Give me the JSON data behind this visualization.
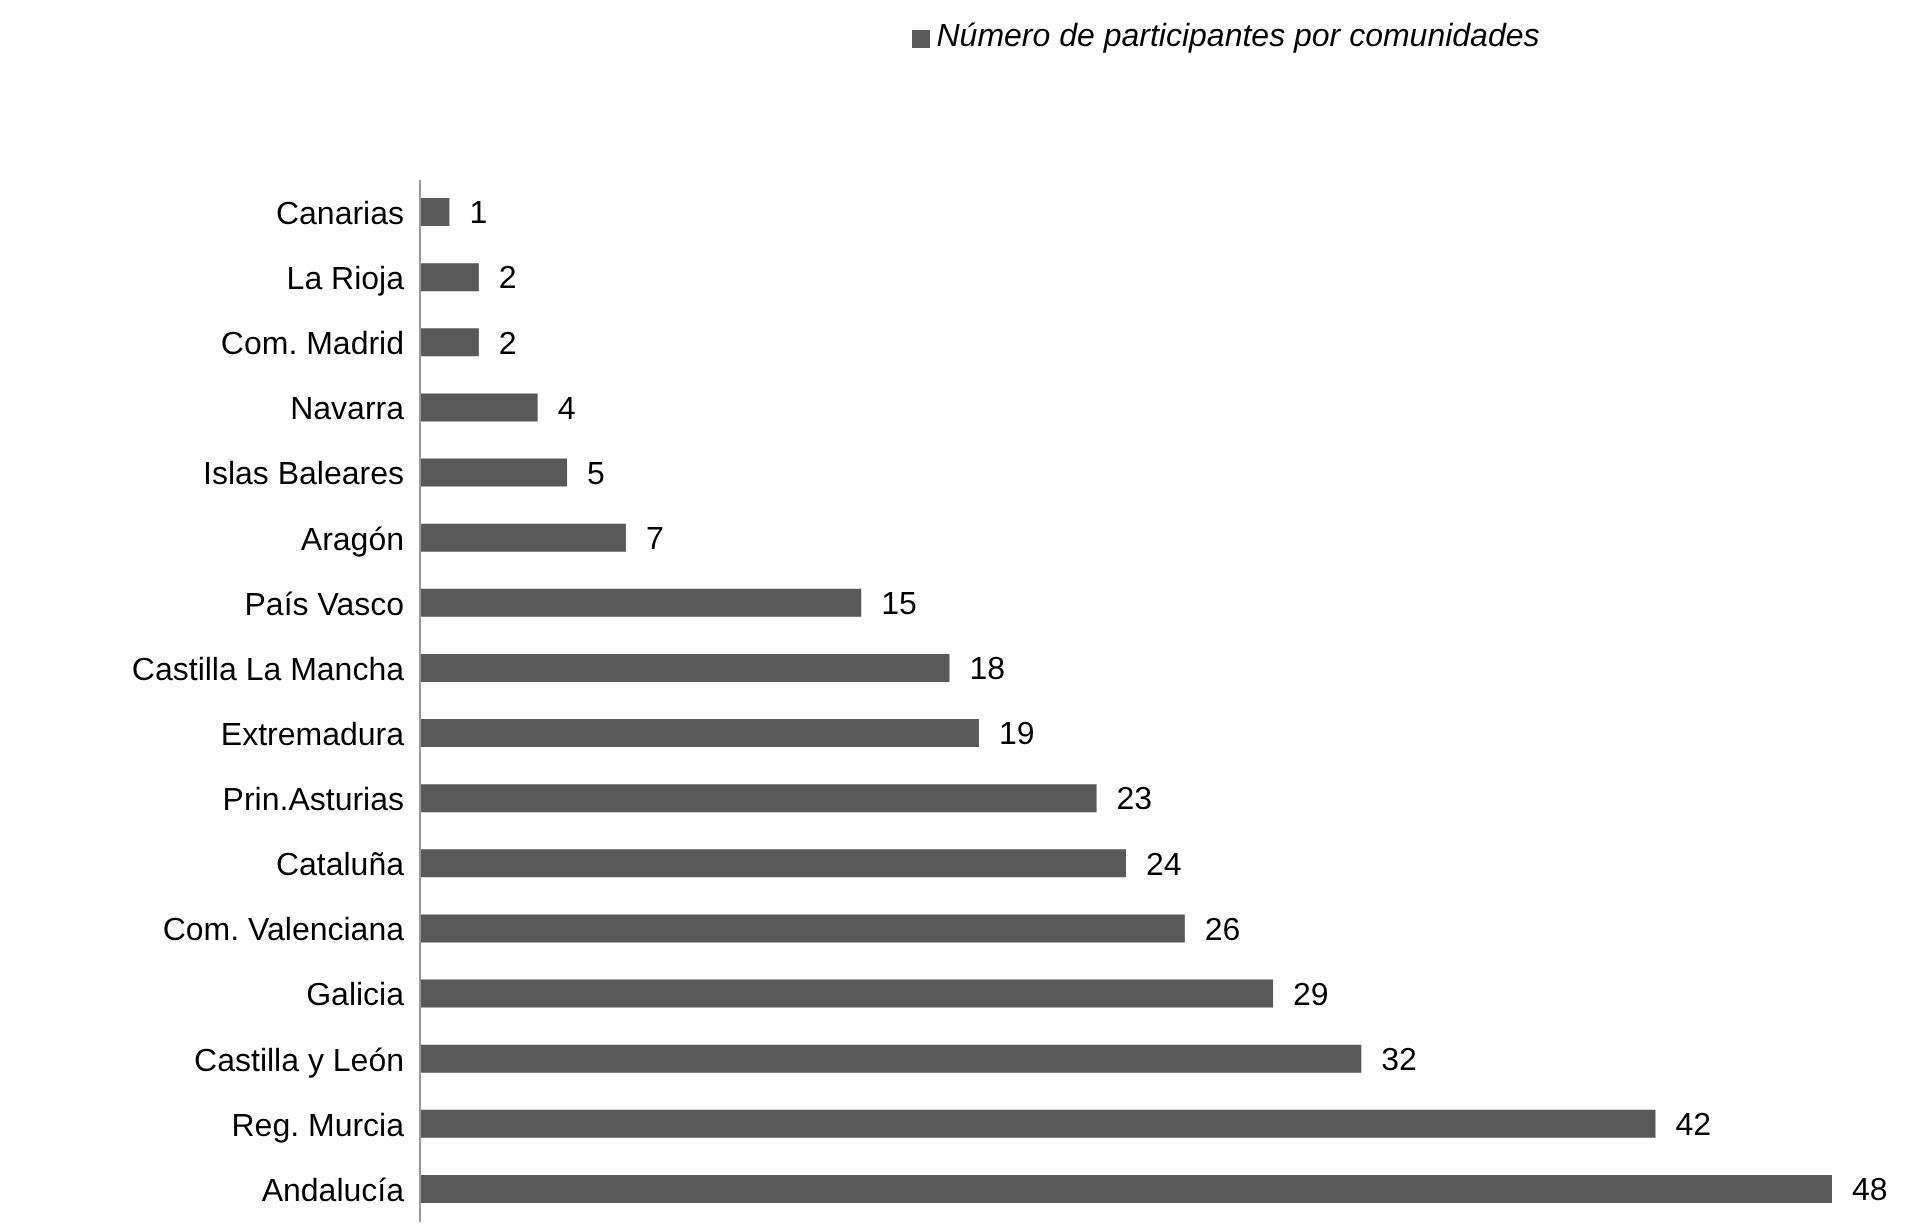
{
  "chart_data": {
    "type": "bar",
    "orientation": "horizontal",
    "categories": [
      "Canarias",
      "La Rioja",
      "Com. Madrid",
      "Navarra",
      "Islas Baleares",
      "Aragón",
      "País Vasco",
      "Castilla La Mancha",
      "Extremadura",
      "Prin.Asturias",
      "Cataluña",
      "Com. Valenciana",
      "Galicia",
      "Castilla y León",
      "Reg. Murcia",
      "Andalucía"
    ],
    "series": [
      {
        "name": "Número de participantes por comunidades",
        "color": "#595959",
        "values": [
          1,
          2,
          2,
          4,
          5,
          7,
          15,
          18,
          19,
          23,
          24,
          26,
          29,
          32,
          42,
          48
        ]
      }
    ],
    "data_labels": true,
    "legend": "top",
    "grid": false
  }
}
